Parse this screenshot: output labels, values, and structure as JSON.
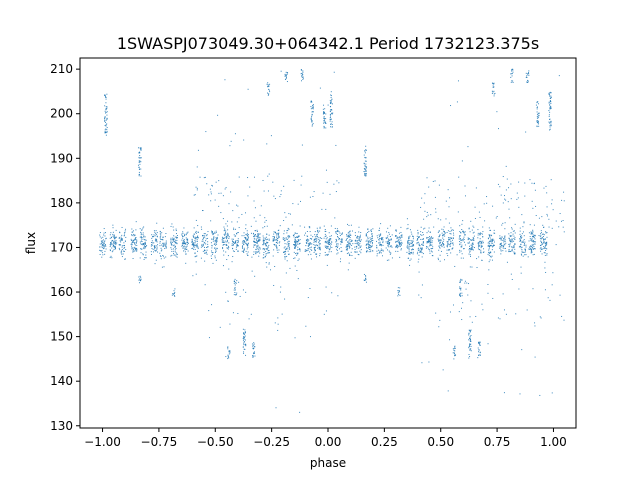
{
  "chart_data": {
    "type": "scatter",
    "title": "1SWASPJ073049.30+064342.1 Period 1732123.375s",
    "xlabel": "phase",
    "ylabel": "flux",
    "xlim": [
      -1.1,
      1.1
    ],
    "ylim": [
      129.5,
      212.5
    ],
    "xticks": [
      -1.0,
      -0.75,
      -0.5,
      -0.25,
      0.0,
      0.25,
      0.5,
      0.75,
      1.0
    ],
    "xtick_labels": [
      "−1.00",
      "−0.75",
      "−0.50",
      "−0.25",
      "0.00",
      "0.25",
      "0.50",
      "0.75",
      "1.00"
    ],
    "yticks": [
      130,
      140,
      150,
      160,
      170,
      180,
      190,
      200,
      210
    ],
    "ytick_labels": [
      "130",
      "140",
      "150",
      "160",
      "170",
      "180",
      "190",
      "200",
      "210"
    ],
    "grid": false,
    "legend": "none",
    "marker_color": "#1f77b4",
    "baseline_flux": 171,
    "baseline_scatter": 1.6,
    "phase_folded": true,
    "clusters": [
      {
        "phase": -0.985,
        "flux_range": [
          195,
          205
        ]
      },
      {
        "phase": -0.835,
        "flux_range": [
          186,
          193
        ]
      },
      {
        "phase": -0.835,
        "flux_range": [
          162,
          164
        ]
      },
      {
        "phase": -0.685,
        "flux_range": [
          159,
          161
        ]
      },
      {
        "phase": -0.44,
        "flux_range": [
          145,
          148
        ]
      },
      {
        "phase": -0.41,
        "flux_range": [
          159,
          163
        ]
      },
      {
        "phase": -0.37,
        "flux_range": [
          145,
          152
        ]
      },
      {
        "phase": -0.33,
        "flux_range": [
          145,
          149
        ]
      },
      {
        "phase": -0.265,
        "flux_range": [
          204,
          207
        ]
      },
      {
        "phase": -0.185,
        "flux_range": [
          207,
          210
        ]
      },
      {
        "phase": -0.115,
        "flux_range": [
          207,
          210
        ]
      },
      {
        "phase": -0.07,
        "flux_range": [
          197,
          203
        ]
      },
      {
        "phase": -0.015,
        "flux_range": [
          196,
          202
        ]
      },
      {
        "phase": 0.015,
        "flux_range": [
          197,
          205
        ]
      },
      {
        "phase": 0.165,
        "flux_range": [
          186,
          193
        ]
      },
      {
        "phase": 0.165,
        "flux_range": [
          162,
          164
        ]
      },
      {
        "phase": 0.315,
        "flux_range": [
          159,
          161
        ]
      },
      {
        "phase": 0.56,
        "flux_range": [
          145,
          148
        ]
      },
      {
        "phase": 0.59,
        "flux_range": [
          159,
          163
        ]
      },
      {
        "phase": 0.63,
        "flux_range": [
          145,
          152
        ]
      },
      {
        "phase": 0.67,
        "flux_range": [
          145,
          149
        ]
      },
      {
        "phase": 0.735,
        "flux_range": [
          204,
          207
        ]
      },
      {
        "phase": 0.815,
        "flux_range": [
          207,
          210
        ]
      },
      {
        "phase": 0.885,
        "flux_range": [
          207,
          210
        ]
      },
      {
        "phase": 0.93,
        "flux_range": [
          197,
          203
        ]
      },
      {
        "phase": 0.985,
        "flux_range": [
          196,
          205
        ]
      }
    ]
  }
}
